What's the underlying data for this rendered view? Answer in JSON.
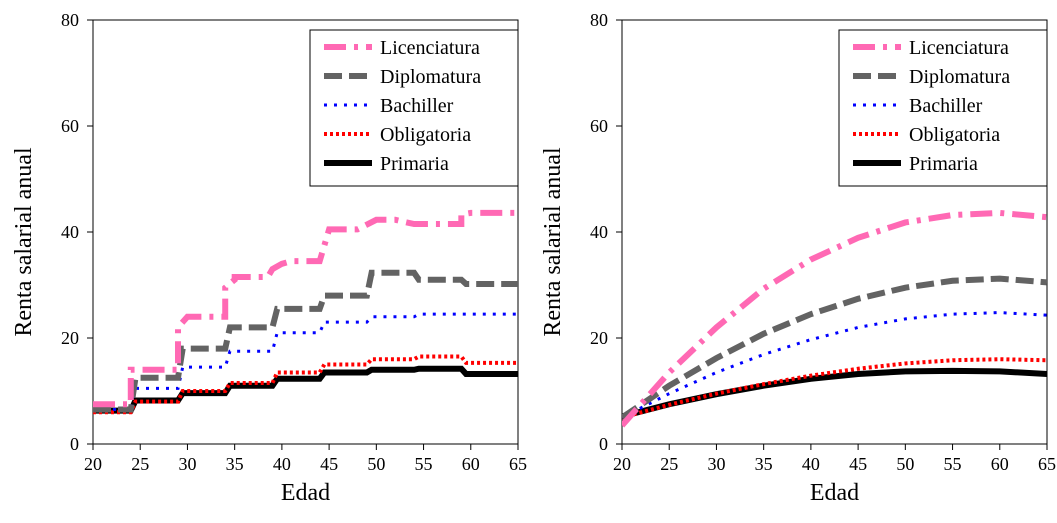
{
  "chart_data": [
    {
      "type": "line",
      "title": "",
      "xlabel": "Edad",
      "ylabel": "Renta salarial anual",
      "xlim": [
        20,
        65
      ],
      "ylim": [
        0,
        80
      ],
      "xticks": [
        20,
        25,
        30,
        35,
        40,
        45,
        50,
        55,
        60,
        65
      ],
      "yticks": [
        0,
        20,
        40,
        60,
        80
      ],
      "grid": false,
      "legend": "top-right",
      "series": [
        {
          "name": "Licenciatura",
          "color": "#ff69b4",
          "dash": "dash-dot",
          "x": [
            20,
            24,
            24,
            29,
            29,
            30,
            30,
            34,
            34,
            35,
            35,
            38.5,
            39,
            40,
            41,
            44,
            45,
            48,
            48,
            50,
            52,
            54,
            55,
            59,
            59,
            60,
            65
          ],
          "y": [
            7.5,
            7.5,
            14,
            14,
            22,
            24,
            24,
            24,
            29.5,
            31,
            31.5,
            31.5,
            33,
            34,
            34.5,
            34.5,
            40.5,
            40.5,
            40.5,
            42.3,
            42.3,
            41.5,
            41.5,
            41.5,
            43.3,
            43.6,
            43.6
          ]
        },
        {
          "name": "Diplomatura",
          "color": "#636363",
          "dash": "dash",
          "x": [
            20,
            24,
            24.5,
            29,
            29.5,
            34,
            34.5,
            39,
            39.5,
            44,
            44.5,
            49,
            49.5,
            54,
            54.5,
            59,
            59.5,
            65
          ],
          "y": [
            6.5,
            6.5,
            12.5,
            12.5,
            18,
            18,
            22,
            22,
            25.5,
            25.5,
            28,
            28,
            32.3,
            32.3,
            31,
            31,
            30.2,
            30.2
          ]
        },
        {
          "name": "Bachiller",
          "color": "#0000ff",
          "dash": "dotted",
          "x": [
            20,
            24,
            24.5,
            29,
            29.5,
            34,
            34.5,
            39,
            39.5,
            44,
            44.5,
            49,
            49.5,
            54,
            54.5,
            59,
            59.5,
            65
          ],
          "y": [
            6.5,
            6.5,
            10.5,
            10.5,
            14.5,
            14.5,
            17.5,
            17.5,
            21,
            21,
            23,
            23,
            24,
            24,
            24.5,
            24.5,
            24.5,
            24.5
          ]
        },
        {
          "name": "Obligatoria",
          "color": "#ff0000",
          "dash": "dense-dotted",
          "x": [
            20,
            24,
            24.5,
            29,
            29.5,
            34,
            34.5,
            39,
            39.5,
            44,
            44.5,
            49,
            49.5,
            54,
            54.5,
            59,
            59.5,
            65
          ],
          "y": [
            6,
            6,
            8,
            8,
            10,
            10,
            11.5,
            11.5,
            13.5,
            13.5,
            15,
            15,
            16,
            16,
            16.5,
            16.5,
            15.3,
            15.3
          ]
        },
        {
          "name": "Primaria",
          "color": "#000000",
          "dash": "solid",
          "x": [
            20,
            24,
            24.5,
            29,
            29.5,
            34,
            34.5,
            39,
            39.5,
            44,
            44.5,
            49,
            49.5,
            54,
            54.5,
            59,
            59.5,
            65
          ],
          "y": [
            6.3,
            6.3,
            8.2,
            8.2,
            9.6,
            9.6,
            11,
            11,
            12.3,
            12.3,
            13.5,
            13.5,
            14,
            14,
            14.2,
            14.2,
            13.2,
            13.2
          ]
        }
      ]
    },
    {
      "type": "line",
      "title": "",
      "xlabel": "Edad",
      "ylabel": "Renta salarial anual",
      "xlim": [
        20,
        65
      ],
      "ylim": [
        0,
        80
      ],
      "xticks": [
        20,
        25,
        30,
        35,
        40,
        45,
        50,
        55,
        60,
        65
      ],
      "yticks": [
        0,
        20,
        40,
        60,
        80
      ],
      "grid": false,
      "legend": "top-right",
      "series": [
        {
          "name": "Licenciatura",
          "color": "#ff69b4",
          "dash": "dash-dot",
          "x": [
            20,
            25,
            30,
            35,
            40,
            45,
            50,
            55,
            60,
            65
          ],
          "y": [
            3.5,
            13.5,
            22,
            29.3,
            34.8,
            38.9,
            41.8,
            43.2,
            43.6,
            42.8
          ]
        },
        {
          "name": "Diplomatura",
          "color": "#636363",
          "dash": "dash",
          "x": [
            20,
            25,
            30,
            35,
            40,
            45,
            50,
            55,
            60,
            65
          ],
          "y": [
            5,
            11,
            16.2,
            20.8,
            24.5,
            27.4,
            29.5,
            30.8,
            31.2,
            30.5
          ]
        },
        {
          "name": "Bachiller",
          "color": "#0000ff",
          "dash": "dotted",
          "x": [
            20,
            25,
            30,
            35,
            40,
            45,
            50,
            55,
            60,
            65
          ],
          "y": [
            5,
            9.5,
            13.5,
            16.9,
            19.7,
            22,
            23.6,
            24.5,
            24.8,
            24.3
          ]
        },
        {
          "name": "Obligatoria",
          "color": "#ff0000",
          "dash": "dense-dotted",
          "x": [
            20,
            25,
            30,
            35,
            40,
            45,
            50,
            55,
            60,
            65
          ],
          "y": [
            5,
            7.4,
            9.5,
            11.3,
            12.9,
            14.2,
            15.2,
            15.8,
            16,
            15.8
          ]
        },
        {
          "name": "Primaria",
          "color": "#000000",
          "dash": "solid",
          "x": [
            20,
            25,
            30,
            35,
            40,
            45,
            50,
            55,
            60,
            65
          ],
          "y": [
            5.2,
            7.5,
            9.4,
            11,
            12.3,
            13.2,
            13.7,
            13.8,
            13.7,
            13.2
          ]
        }
      ]
    }
  ]
}
